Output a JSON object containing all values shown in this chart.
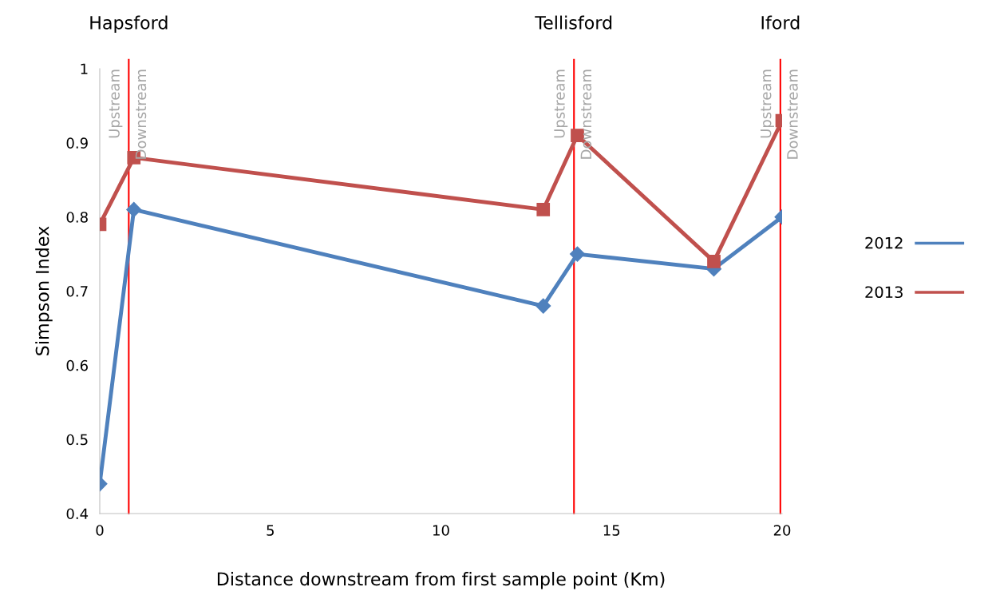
{
  "chart_data": {
    "type": "line",
    "xlabel": "Distance downstream from first sample point (Km)",
    "ylabel": "Simpson Index",
    "x": [
      0,
      1,
      13,
      14,
      18,
      20
    ],
    "series": [
      {
        "name": "2012",
        "color": "#4f81bd",
        "marker": "diamond",
        "values": [
          0.44,
          0.81,
          0.68,
          0.75,
          0.73,
          0.8
        ]
      },
      {
        "name": "2013",
        "color": "#c0504d",
        "marker": "square",
        "values": [
          0.79,
          0.88,
          0.81,
          0.91,
          0.74,
          0.93
        ]
      }
    ],
    "xlim": [
      0,
      20
    ],
    "xticks": [
      0,
      5,
      10,
      15,
      20
    ],
    "ylim": [
      0.4,
      1
    ],
    "yticks": [
      0.4,
      0.5,
      0.6,
      0.7,
      0.8,
      0.9,
      1
    ],
    "ref_lines": [
      {
        "axis": "x",
        "value": 0.85,
        "label": "Hapsford",
        "color": "#ff0000"
      },
      {
        "axis": "x",
        "value": 13.9,
        "label": "Tellisford",
        "color": "#ff0000"
      },
      {
        "axis": "x",
        "value": 19.95,
        "label": "Iford",
        "color": "#ff0000"
      }
    ],
    "annotations": [
      "Upstream",
      "Downstream",
      "Upstream",
      "Downstream",
      "Upstream",
      "Downstream"
    ],
    "grid": false,
    "legend": "right",
    "line_style": "solid"
  }
}
